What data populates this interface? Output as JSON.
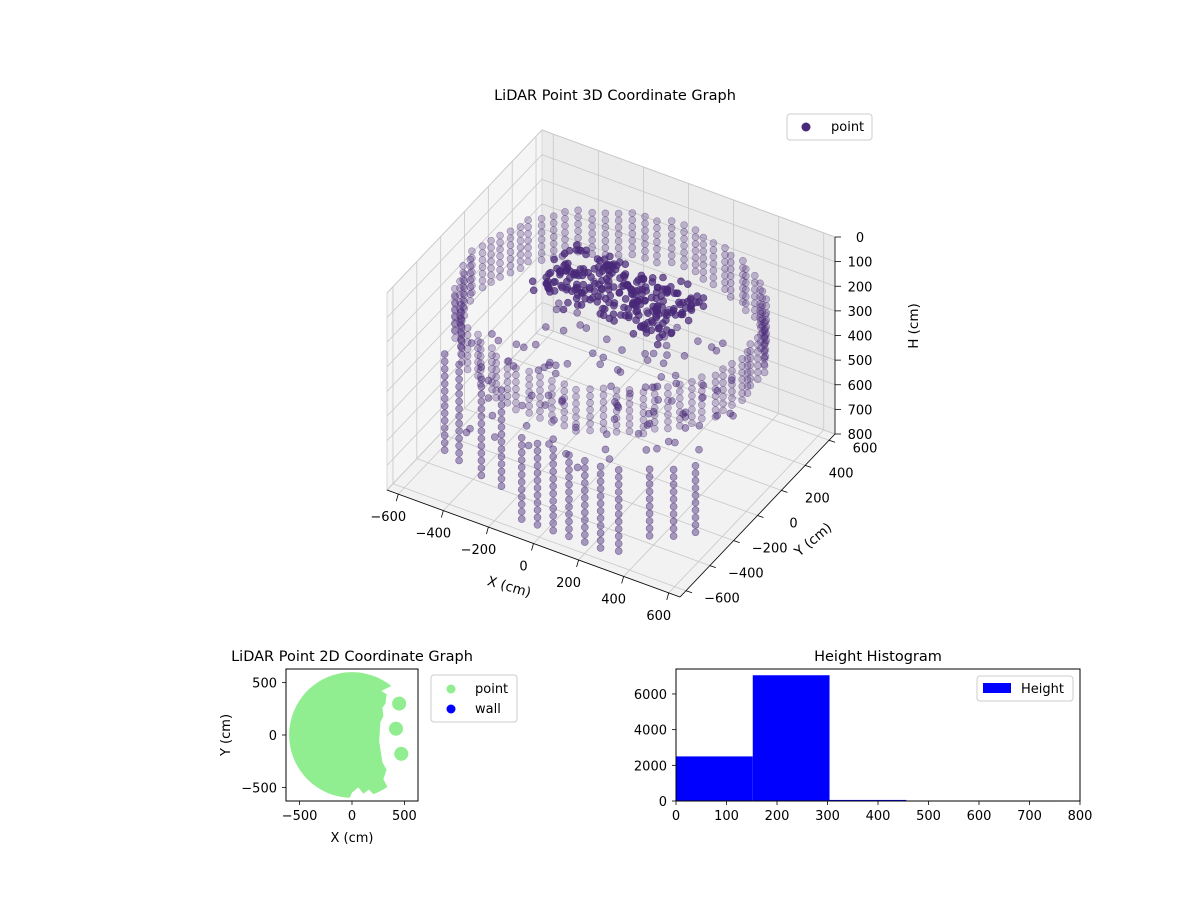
{
  "chart_data": [
    {
      "type": "scatter",
      "projection": "3d",
      "title": "LiDAR Point 3D Coordinate Graph",
      "xlabel": "X (cm)",
      "ylabel": "Y (cm)",
      "zlabel": "H (cm)",
      "xlim": [
        -650,
        650
      ],
      "ylim": [
        -650,
        650
      ],
      "zlim": [
        800,
        0
      ],
      "z_axis_inverted": true,
      "xticks": [
        -600,
        -400,
        -200,
        0,
        200,
        400,
        600
      ],
      "yticks": [
        -600,
        -400,
        -200,
        0,
        200,
        400,
        600
      ],
      "zticks": [
        0,
        100,
        200,
        300,
        400,
        500,
        600,
        700,
        800
      ],
      "grid": true,
      "legend": "top-right",
      "series": [
        {
          "name": "point",
          "color": "#482878",
          "groups": [
            {
              "kind": "ring",
              "radius": 600,
              "theta_range": [
                0,
                360
              ],
              "h_range": [
                150,
                320
              ]
            },
            {
              "kind": "vertical_columns",
              "points": [
                [
                  -500,
                  -450
                ],
                [
                  -420,
                  -480
                ],
                [
                  -300,
                  -520
                ],
                [
                  -200,
                  -540
                ]
              ],
              "h_range": [
                300,
                700
              ]
            },
            {
              "kind": "vertical_columns",
              "points": [
                [
                  -100,
                  -560
                ],
                [
                  -30,
                  -560
                ],
                [
                  40,
                  -560
                ],
                [
                  110,
                  -560
                ],
                [
                  180,
                  -560
                ],
                [
                  250,
                  -560
                ],
                [
                  320,
                  -540
                ]
              ],
              "h_range": [
                450,
                780
              ]
            },
            {
              "kind": "vertical_columns",
              "points": [
                [
                  420,
                  -470
                ],
                [
                  500,
                  -420
                ],
                [
                  560,
                  -350
                ]
              ],
              "h_range": [
                450,
                720
              ]
            },
            {
              "kind": "scattered",
              "x_range": [
                -450,
                450
              ],
              "y_range": [
                -450,
                350
              ],
              "h_range": [
                200,
                650
              ]
            },
            {
              "kind": "dense_cluster",
              "x_range": [
                -350,
                250
              ],
              "y_range": [
                0,
                350
              ],
              "h_range": [
                180,
                260
              ]
            }
          ]
        }
      ]
    },
    {
      "type": "scatter",
      "title": "LiDAR Point 2D Coordinate Graph",
      "xlabel": "X (cm)",
      "ylabel": "Y (cm)",
      "xlim": [
        -630,
        630
      ],
      "ylim": [
        -630,
        630
      ],
      "xticks": [
        -500,
        0,
        500
      ],
      "yticks": [
        -500,
        0,
        500
      ],
      "legend": "outside-right",
      "series": [
        {
          "name": "point",
          "color": "#90ee90",
          "region": "disc",
          "center": [
            0,
            0
          ],
          "radius": 600
        },
        {
          "name": "wall",
          "color": "#0000ff",
          "points": []
        }
      ],
      "gaps": [
        {
          "polygon": [
            [
              280,
              420
            ],
            [
              330,
              390
            ],
            [
              320,
              300
            ],
            [
              290,
              260
            ],
            [
              300,
              180
            ],
            [
              270,
              120
            ],
            [
              260,
              -60
            ],
            [
              290,
              -260
            ],
            [
              330,
              -330
            ],
            [
              300,
              -420
            ],
            [
              340,
              -500
            ],
            [
              420,
              -540
            ],
            [
              620,
              -540
            ],
            [
              620,
              640
            ],
            [
              480,
              640
            ],
            [
              430,
              560
            ],
            [
              380,
              470
            ]
          ],
          "holes_filled_at": [
            [
              450,
              300
            ],
            [
              420,
              60
            ],
            [
              470,
              -180
            ]
          ]
        },
        {
          "polygon": [
            [
              0,
              -550
            ],
            [
              60,
              -500
            ],
            [
              110,
              -560
            ],
            [
              160,
              -520
            ],
            [
              220,
              -580
            ],
            [
              40,
              -640
            ],
            [
              -40,
              -640
            ]
          ]
        }
      ]
    },
    {
      "type": "bar",
      "subtype": "histogram",
      "title": "Height Histogram",
      "xlim": [
        0,
        800
      ],
      "ylim": [
        0,
        7400
      ],
      "xticks": [
        0,
        100,
        200,
        300,
        400,
        500,
        600,
        700,
        800
      ],
      "yticks": [
        0,
        2000,
        4000,
        6000
      ],
      "legend": "top-right",
      "series": [
        {
          "name": "Height",
          "color": "#0000ff",
          "bins": [
            {
              "x0": 0,
              "x1": 152,
              "count": 2500
            },
            {
              "x0": 152,
              "x1": 304,
              "count": 7050
            },
            {
              "x0": 304,
              "x1": 456,
              "count": 60
            },
            {
              "x0": 456,
              "x1": 608,
              "count": 10
            },
            {
              "x0": 608,
              "x1": 760,
              "count": 5
            }
          ]
        }
      ]
    }
  ]
}
